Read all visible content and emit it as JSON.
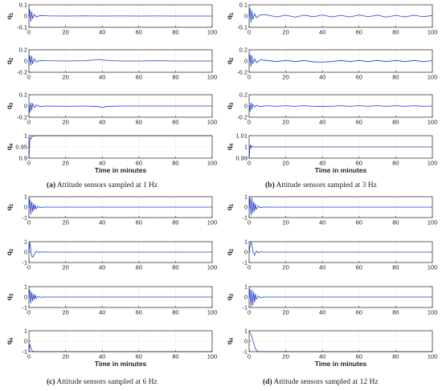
{
  "figure": {
    "axis_color": "#222222",
    "grid_color": "#d0d0d0",
    "line_color": "#1f3fd8",
    "captions": [
      {
        "tag": "(a)",
        "text": " Attitude sensors sampled at 1 Hz"
      },
      {
        "tag": "(b)",
        "text": " Attitude sensors sampled at 3 Hz"
      },
      {
        "tag": "(c)",
        "text": " Attitude sensors sampled at 6 Hz"
      },
      {
        "tag": "(d)",
        "text": " Attitude sensors sampled at 12 Hz"
      }
    ]
  },
  "chart_data": [
    {
      "type": "line",
      "panel": "a",
      "xlabel": "Time in minutes",
      "xlim": [
        0,
        100
      ],
      "xticks": [
        "0",
        "20",
        "40",
        "60",
        "80",
        "100"
      ],
      "grid": true,
      "subplots": [
        {
          "ylabel": "q1",
          "ylim": [
            -0.1,
            0.1
          ],
          "yticks": [
            "-0.1",
            "0",
            "0.1"
          ],
          "x": [
            0,
            0.5,
            1,
            1.5,
            2,
            3,
            4,
            6,
            10,
            20,
            30,
            40,
            50,
            60,
            70,
            80,
            90,
            100
          ],
          "values": [
            0.0,
            0.06,
            -0.05,
            0.04,
            -0.02,
            0.015,
            -0.01,
            0.005,
            0.002,
            0.0,
            0.002,
            0.0,
            0.001,
            0.0,
            0.001,
            0.0,
            0.0,
            0.0
          ]
        },
        {
          "ylabel": "q2",
          "ylim": [
            -0.2,
            0.2
          ],
          "yticks": [
            "-0.2",
            "0",
            "0.2"
          ],
          "x": [
            0,
            0.5,
            1,
            1.5,
            2,
            3,
            4,
            6,
            10,
            20,
            30,
            36,
            38,
            40,
            45,
            50,
            60,
            70,
            80,
            90,
            100
          ],
          "values": [
            0.0,
            0.1,
            -0.08,
            0.09,
            -0.05,
            0.04,
            -0.02,
            0.01,
            0.005,
            0.0,
            0.005,
            0.02,
            0.03,
            0.02,
            0.005,
            0.0,
            0.0,
            0.005,
            0.0,
            0.0,
            0.0
          ]
        },
        {
          "ylabel": "q3",
          "ylim": [
            -0.2,
            0.2
          ],
          "yticks": [
            "-0.2",
            "0",
            "0.2"
          ],
          "x": [
            0,
            0.5,
            1,
            1.5,
            2,
            3,
            4,
            6,
            10,
            20,
            30,
            38,
            40,
            42,
            50,
            60,
            70,
            80,
            90,
            100
          ],
          "values": [
            0.0,
            -0.12,
            0.06,
            -0.08,
            0.04,
            -0.03,
            0.02,
            -0.01,
            0.0,
            -0.005,
            0.0,
            -0.01,
            -0.03,
            -0.01,
            0.0,
            0.0,
            0.0,
            0.0,
            0.0,
            0.0
          ]
        },
        {
          "ylabel": "q4",
          "ylim": [
            0.9,
            1.0
          ],
          "yticks": [
            "0.9",
            "0.95",
            "1"
          ],
          "x": [
            0,
            0.3,
            0.6,
            1,
            1.5,
            2,
            3,
            4,
            10,
            100
          ],
          "values": [
            0.9,
            0.96,
            0.99,
            0.985,
            0.995,
            0.998,
            0.999,
            1.0,
            1.0,
            1.0
          ]
        }
      ]
    },
    {
      "type": "line",
      "panel": "b",
      "xlabel": "Time in minutes",
      "xlim": [
        0,
        100
      ],
      "xticks": [
        "0",
        "20",
        "40",
        "60",
        "80",
        "100"
      ],
      "grid": true,
      "subplots": [
        {
          "ylabel": "q1",
          "ylim": [
            -0.1,
            0.1
          ],
          "yticks": [
            "-0.1",
            "0",
            "0.1"
          ],
          "x": [
            0,
            0.5,
            1,
            1.5,
            2,
            3,
            4,
            6,
            10,
            15,
            20,
            25,
            30,
            35,
            40,
            45,
            50,
            55,
            60,
            65,
            70,
            75,
            80,
            85,
            90,
            95,
            100
          ],
          "values": [
            0.0,
            0.07,
            -0.06,
            0.05,
            -0.03,
            0.02,
            -0.015,
            0.01,
            0.01,
            -0.008,
            0.008,
            -0.01,
            0.008,
            -0.006,
            0.01,
            -0.008,
            0.006,
            -0.008,
            0.01,
            -0.006,
            0.008,
            -0.01,
            0.006,
            -0.008,
            0.008,
            -0.006,
            0.005
          ]
        },
        {
          "ylabel": "q2",
          "ylim": [
            -0.2,
            0.2
          ],
          "yticks": [
            "-0.2",
            "0",
            "0.2"
          ],
          "x": [
            0,
            0.5,
            1,
            1.5,
            2,
            3,
            4,
            6,
            10,
            15,
            20,
            25,
            30,
            35,
            40,
            45,
            50,
            55,
            60,
            65,
            70,
            75,
            80,
            85,
            90,
            95,
            100
          ],
          "values": [
            0.0,
            0.12,
            -0.1,
            0.1,
            -0.05,
            0.04,
            -0.03,
            0.02,
            0.01,
            -0.01,
            0.01,
            -0.01,
            0.01,
            -0.015,
            -0.02,
            -0.01,
            0.01,
            -0.01,
            0.01,
            -0.01,
            0.01,
            -0.01,
            0.01,
            -0.01,
            0.01,
            -0.01,
            0.005
          ]
        },
        {
          "ylabel": "q3",
          "ylim": [
            -0.2,
            0.2
          ],
          "yticks": [
            "-0.2",
            "0",
            "0.2"
          ],
          "x": [
            0,
            0.5,
            1,
            1.5,
            2,
            3,
            4,
            6,
            10,
            15,
            20,
            25,
            30,
            35,
            40,
            45,
            50,
            55,
            60,
            65,
            70,
            75,
            80,
            85,
            90,
            95,
            100
          ],
          "values": [
            0.0,
            -0.1,
            0.06,
            -0.06,
            0.03,
            -0.02,
            0.015,
            -0.01,
            0.005,
            -0.005,
            0.005,
            -0.005,
            0.005,
            -0.005,
            -0.01,
            -0.005,
            0.005,
            -0.005,
            0.005,
            -0.005,
            0.005,
            -0.005,
            0.005,
            -0.005,
            0.005,
            -0.005,
            0.0
          ]
        },
        {
          "ylabel": "q4",
          "ylim": [
            0.99,
            1.01
          ],
          "yticks": [
            "0.99",
            "1",
            "1.01"
          ],
          "x": [
            0,
            0.3,
            0.6,
            1,
            1.5,
            2,
            3,
            4,
            10,
            100
          ],
          "values": [
            0.99,
            0.997,
            1.002,
            0.999,
            1.001,
            1.0,
            1.0,
            1.0,
            1.0,
            1.0
          ]
        }
      ]
    },
    {
      "type": "line",
      "panel": "c",
      "xlabel": "Time in minutes",
      "xlim": [
        0,
        100
      ],
      "xticks": [
        "0",
        "20",
        "40",
        "60",
        "80",
        "100"
      ],
      "grid": true,
      "subplots": [
        {
          "ylabel": "q1",
          "ylim": [
            -1,
            1
          ],
          "yticks": [
            "-1",
            "0",
            "1"
          ],
          "x": [
            0,
            0.5,
            1,
            1.5,
            2,
            2.5,
            3,
            3.5,
            4,
            5,
            6,
            8,
            10,
            100
          ],
          "values": [
            0.0,
            0.8,
            -0.7,
            0.55,
            -0.45,
            0.35,
            -0.28,
            0.2,
            -0.15,
            0.08,
            -0.04,
            0.01,
            0.0,
            0.0
          ]
        },
        {
          "ylabel": "q2",
          "ylim": [
            -1,
            1
          ],
          "yticks": [
            "-1",
            "0",
            "1"
          ],
          "x": [
            0,
            0.5,
            1,
            1.5,
            2,
            3,
            4,
            5,
            6,
            8,
            10,
            100
          ],
          "values": [
            0.0,
            0.9,
            0.3,
            -0.4,
            -0.5,
            -0.2,
            0.1,
            -0.05,
            0.02,
            0.0,
            0.0,
            0.0
          ]
        },
        {
          "ylabel": "q3",
          "ylim": [
            -1,
            1
          ],
          "yticks": [
            "-1",
            "0",
            "1"
          ],
          "x": [
            0,
            0.5,
            1,
            1.5,
            2,
            2.5,
            3,
            3.5,
            4,
            5,
            6,
            8,
            10,
            100
          ],
          "values": [
            0.0,
            0.7,
            -0.6,
            0.5,
            -0.4,
            0.3,
            -0.25,
            0.2,
            -0.12,
            0.06,
            -0.03,
            0.01,
            0.0,
            0.0
          ]
        },
        {
          "ylabel": "q4",
          "ylim": [
            -1,
            1
          ],
          "yticks": [
            "-1",
            "0",
            "1"
          ],
          "x": [
            0,
            0.5,
            1,
            1.5,
            2,
            3,
            4,
            6,
            10,
            100
          ],
          "values": [
            -1.0,
            -0.3,
            -0.6,
            -0.85,
            -0.95,
            -1.0,
            -0.98,
            -1.0,
            -1.0,
            -1.0
          ]
        }
      ]
    },
    {
      "type": "line",
      "panel": "d",
      "xlabel": "Time in minutes",
      "xlim": [
        0,
        100
      ],
      "xticks": [
        "0",
        "20",
        "40",
        "60",
        "80",
        "100"
      ],
      "grid": true,
      "subplots": [
        {
          "ylabel": "q1",
          "ylim": [
            -1,
            1
          ],
          "yticks": [
            "-1",
            "0",
            "1"
          ],
          "x": [
            0,
            0.5,
            1,
            1.5,
            2,
            2.5,
            3,
            3.5,
            4,
            5,
            6,
            8,
            10,
            100
          ],
          "values": [
            0.0,
            0.9,
            -0.8,
            0.9,
            -0.6,
            0.5,
            -0.4,
            0.3,
            -0.2,
            0.1,
            -0.05,
            0.01,
            0.0,
            0.0
          ]
        },
        {
          "ylabel": "q2",
          "ylim": [
            -1,
            1
          ],
          "yticks": [
            "-1",
            "0",
            "1"
          ],
          "x": [
            0,
            0.5,
            1,
            1.5,
            2,
            3,
            4,
            5,
            6,
            8,
            10,
            100
          ],
          "values": [
            0.0,
            0.6,
            0.95,
            0.7,
            0.1,
            -0.3,
            0.1,
            -0.05,
            0.02,
            0.0,
            0.0,
            0.0
          ]
        },
        {
          "ylabel": "q3",
          "ylim": [
            -1,
            1
          ],
          "yticks": [
            "-1",
            "0",
            "1"
          ],
          "x": [
            0,
            0.5,
            1,
            1.5,
            2,
            2.5,
            3,
            3.5,
            4,
            5,
            6,
            8,
            10,
            100
          ],
          "values": [
            0.0,
            0.8,
            -0.9,
            0.7,
            -0.8,
            0.5,
            -0.5,
            0.3,
            -0.2,
            0.1,
            -0.05,
            0.01,
            0.0,
            0.0
          ]
        },
        {
          "ylabel": "q4",
          "ylim": [
            -1,
            1
          ],
          "yticks": [
            "-1",
            "0",
            "1"
          ],
          "x": [
            0,
            1,
            1.5,
            2,
            3,
            4,
            5,
            10,
            100
          ],
          "values": [
            0.9,
            0.7,
            0.4,
            0.1,
            -0.5,
            -0.9,
            -1.0,
            -1.0,
            -1.0
          ]
        }
      ]
    }
  ]
}
